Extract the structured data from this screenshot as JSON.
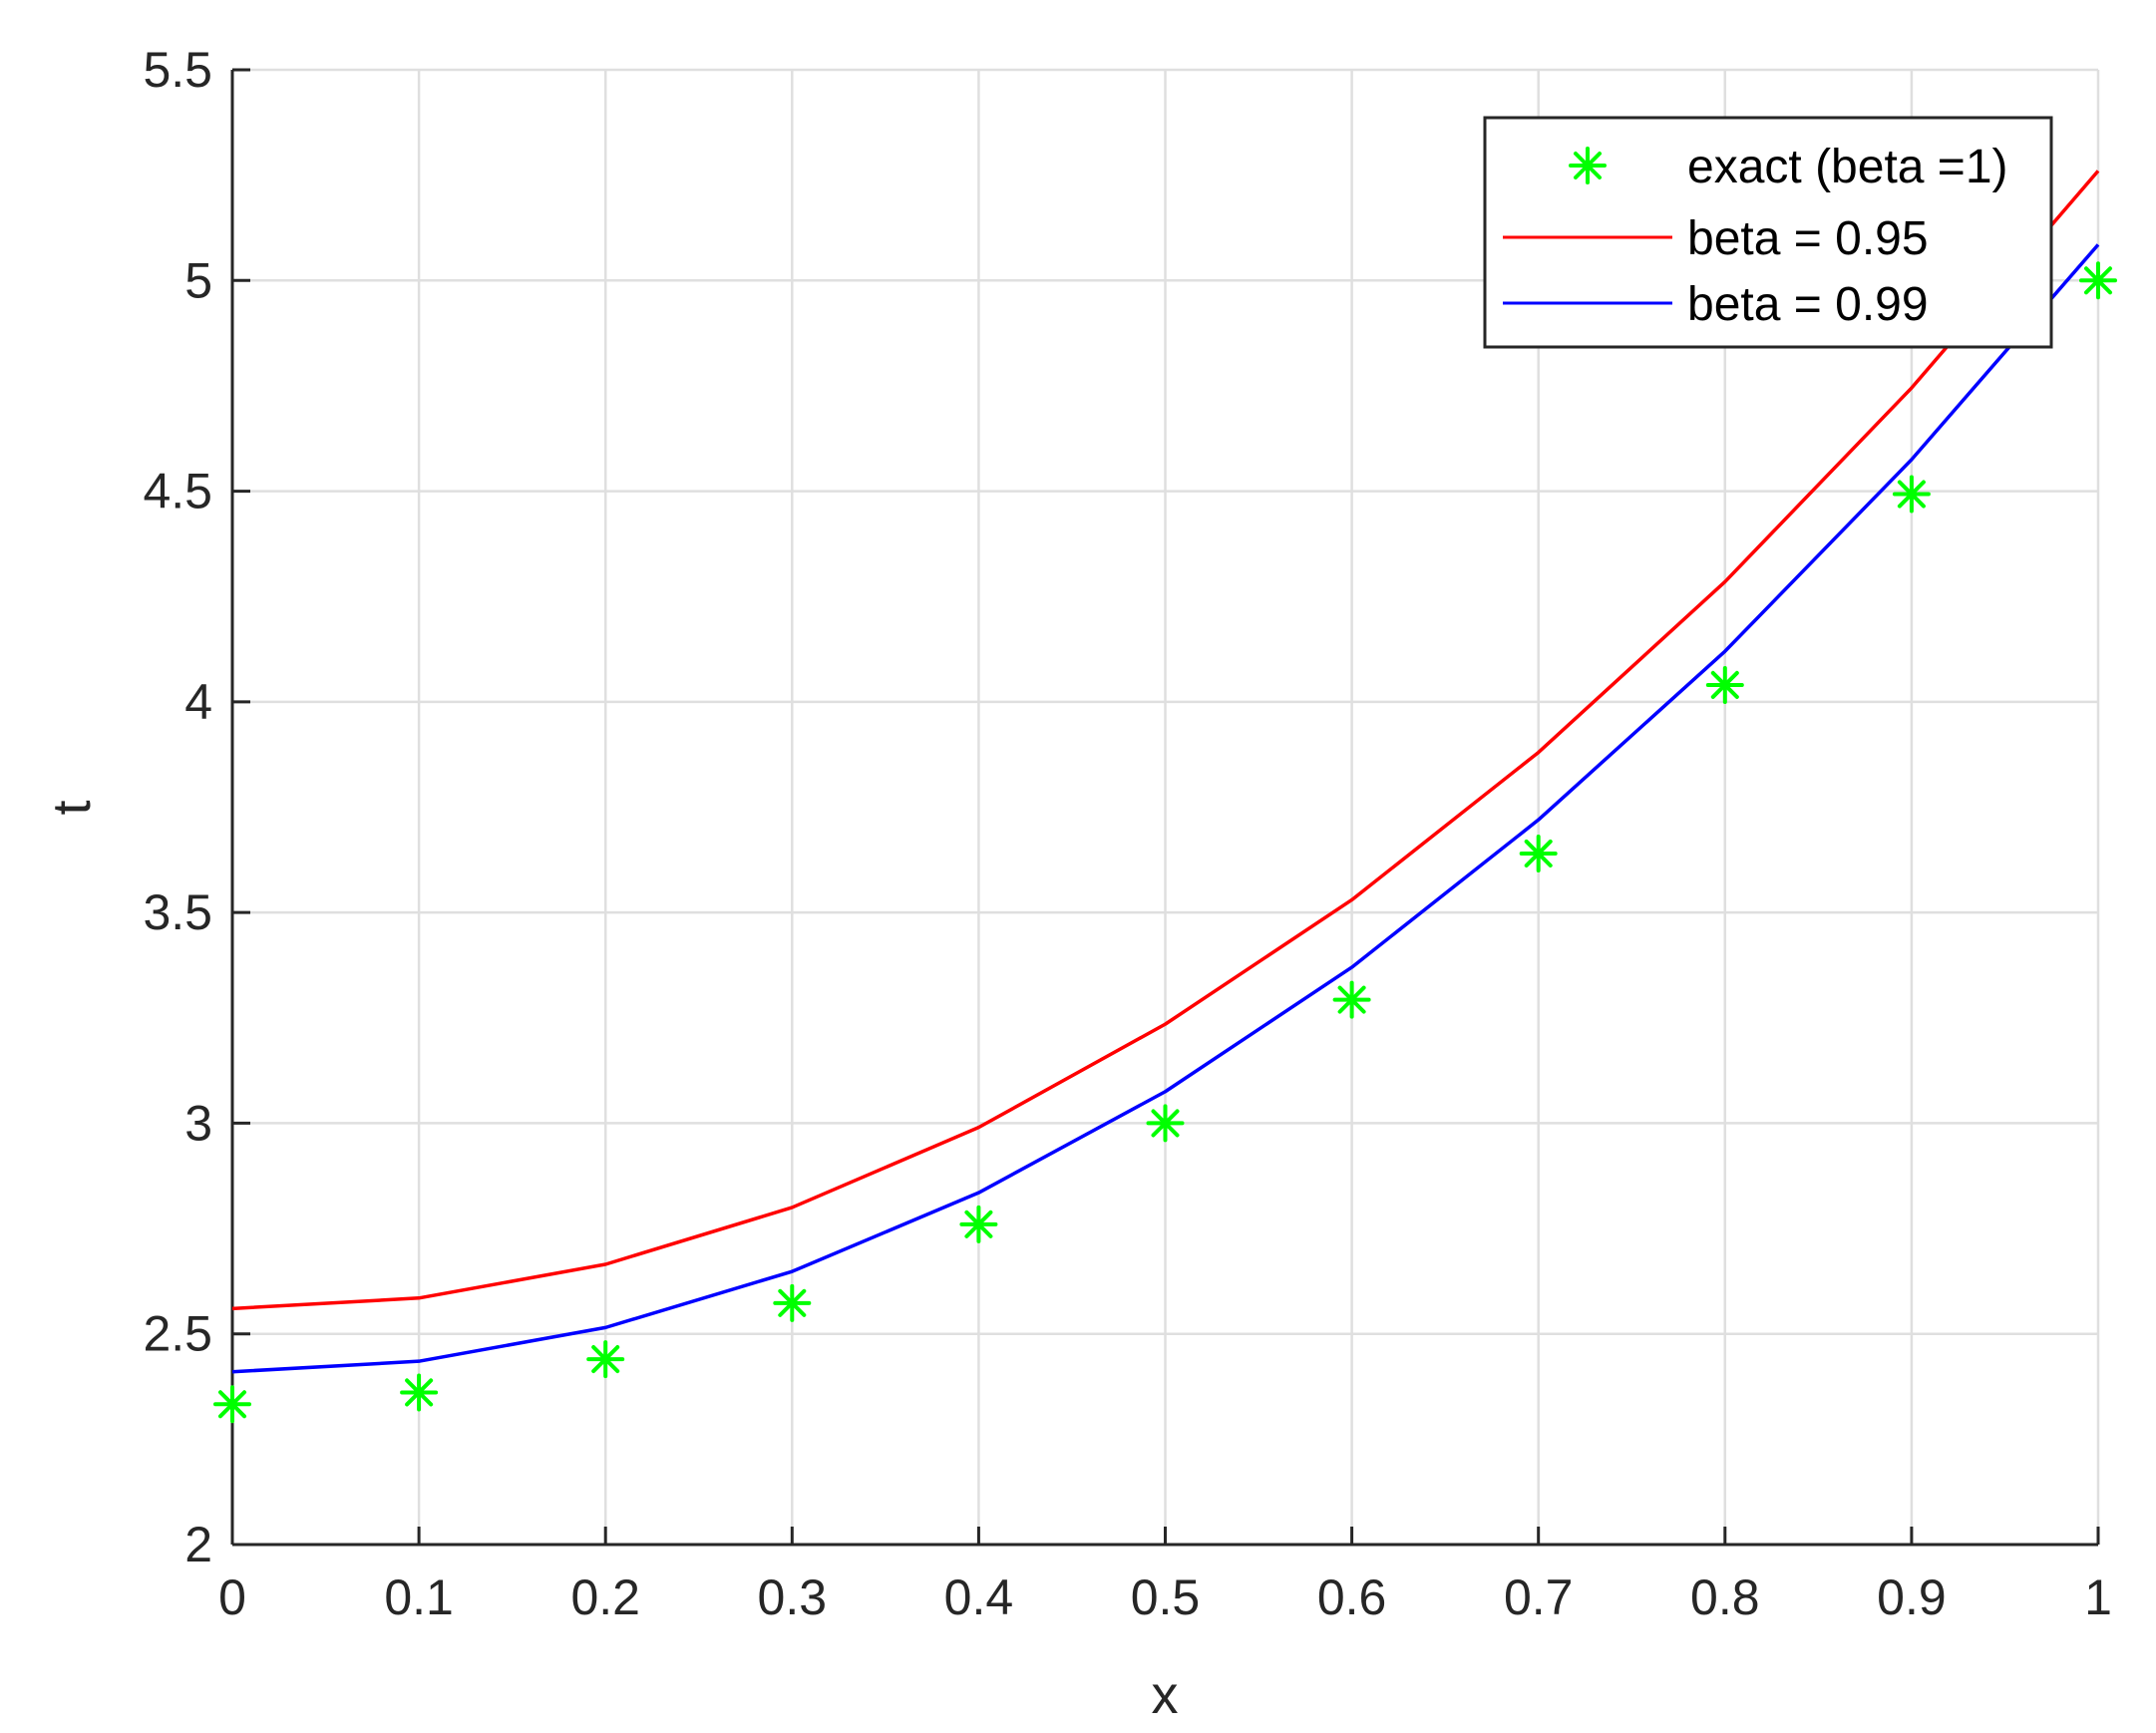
{
  "chart_data": {
    "type": "line",
    "title": "",
    "xlabel": "x",
    "ylabel": "t",
    "xlim": [
      0,
      1
    ],
    "ylim": [
      2,
      5.5
    ],
    "x_ticks": [
      0,
      0.1,
      0.2,
      0.3,
      0.4,
      0.5,
      0.6,
      0.7,
      0.8,
      0.9,
      1
    ],
    "x_tick_labels": [
      "0",
      "0.1",
      "0.2",
      "0.3",
      "0.4",
      "0.5",
      "0.6",
      "0.7",
      "0.8",
      "0.9",
      "1"
    ],
    "y_ticks": [
      2,
      2.5,
      3,
      3.5,
      4,
      4.5,
      5,
      5.5
    ],
    "y_tick_labels": [
      "2",
      "2.5",
      "3",
      "3.5",
      "4",
      "4.5",
      "5",
      "5.5"
    ],
    "grid": true,
    "legend_position": "top-right",
    "x": [
      0,
      0.1,
      0.2,
      0.3,
      0.4,
      0.5,
      0.6,
      0.7,
      0.8,
      0.9,
      1
    ],
    "series": [
      {
        "name": "exact (beta =1)",
        "style": "markers",
        "marker": "asterisk",
        "color": "#00ff00",
        "values": [
          2.333,
          2.361,
          2.44,
          2.573,
          2.76,
          3.0,
          3.293,
          3.64,
          4.04,
          4.493,
          5.0
        ]
      },
      {
        "name": "beta = 0.95",
        "style": "line",
        "color": "#ff0000",
        "values": [
          2.56,
          2.585,
          2.665,
          2.8,
          2.99,
          3.235,
          3.53,
          3.88,
          4.285,
          4.745,
          5.26
        ]
      },
      {
        "name": "beta = 0.99",
        "style": "line",
        "color": "#0000ff",
        "values": [
          2.41,
          2.435,
          2.515,
          2.648,
          2.835,
          3.075,
          3.37,
          3.72,
          4.12,
          4.575,
          5.085
        ]
      }
    ]
  }
}
